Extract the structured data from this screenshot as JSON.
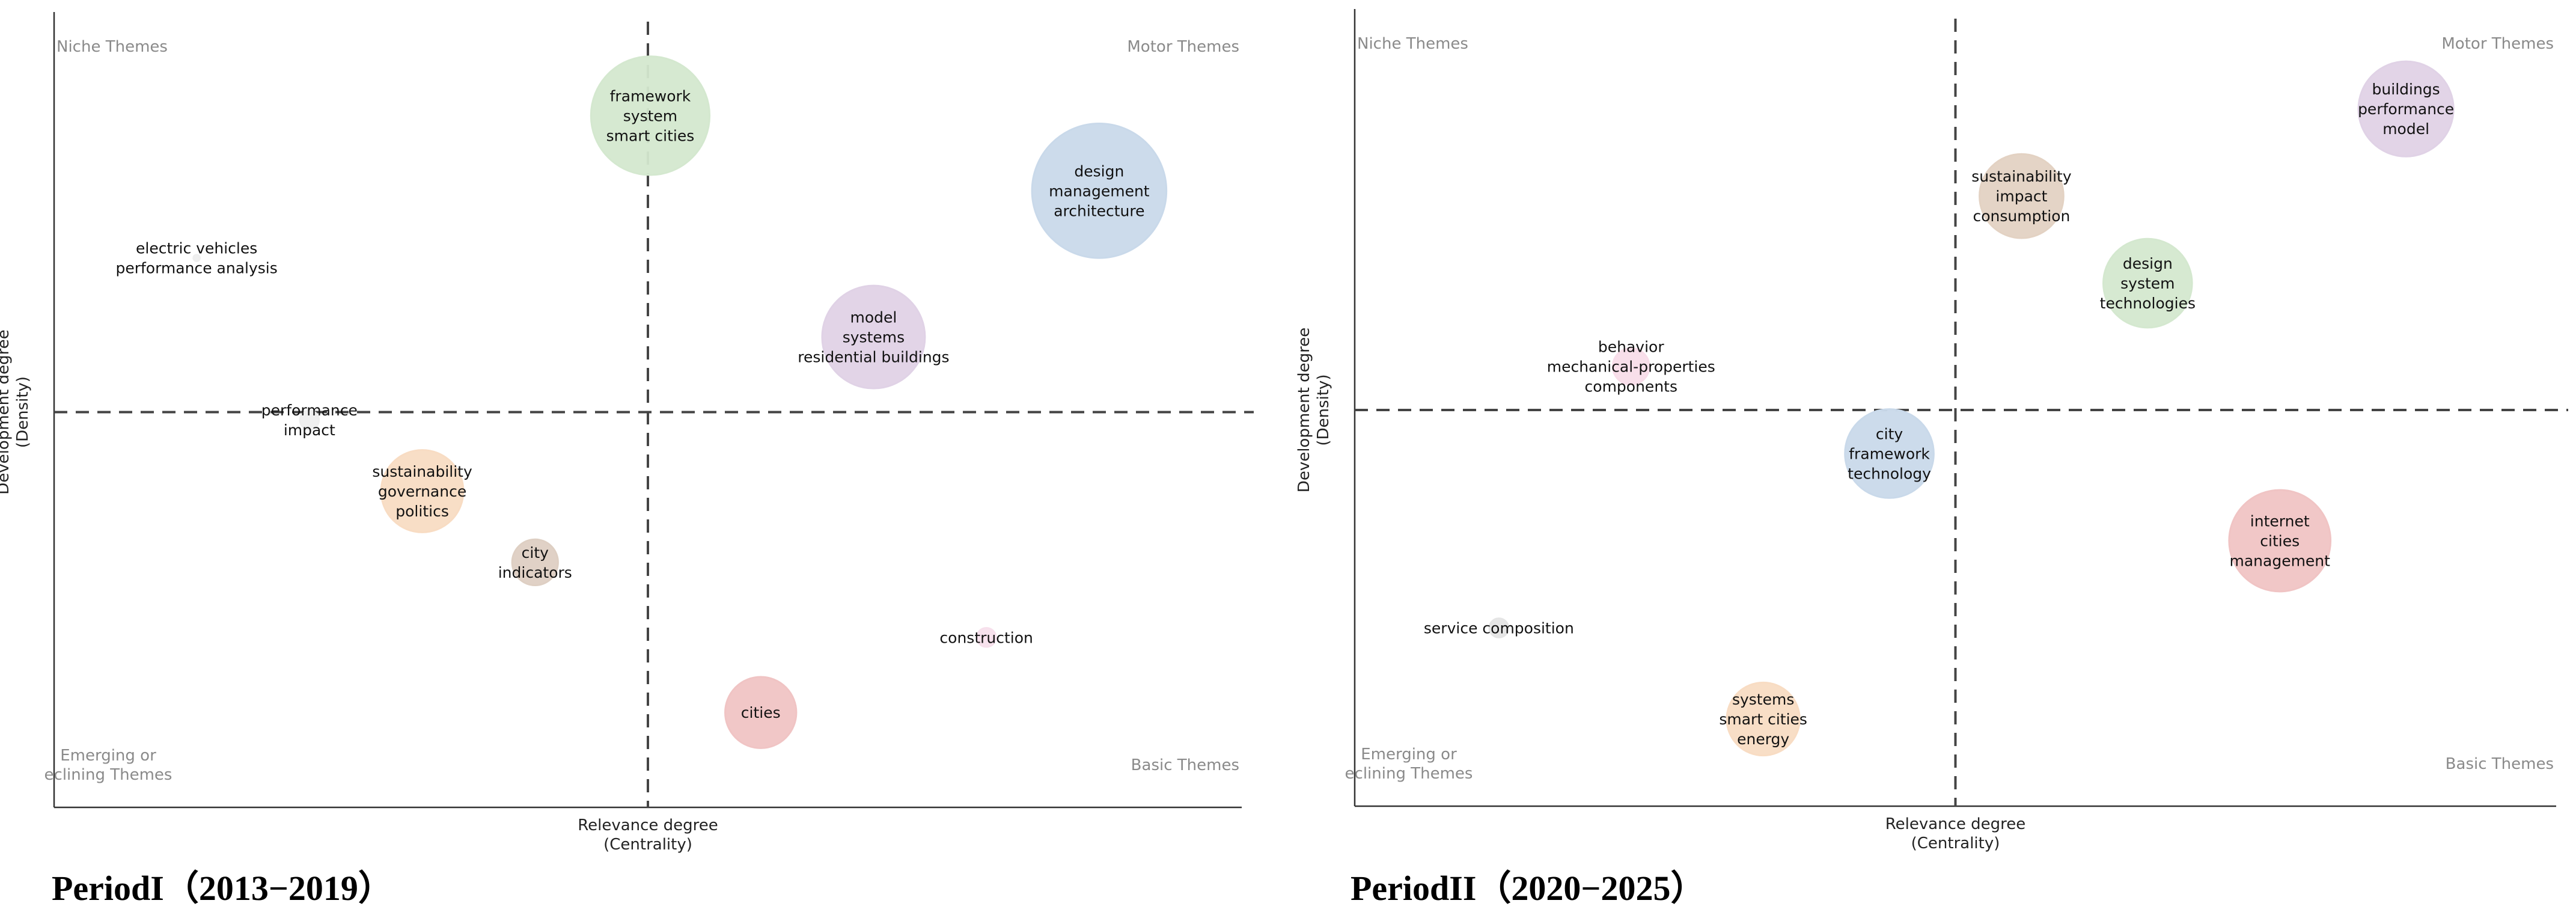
{
  "periods": [
    {
      "title": "PeriodI（2013−2019）"
    },
    {
      "title": "PeriodII（2020−2025）"
    }
  ],
  "chart_data": [
    {
      "type": "scatter",
      "title": "PeriodI（2013−2019）",
      "xlabel": "Relevance degree\n(Centrality)",
      "ylabel": "Development degree\n(Density)",
      "xlim": [
        0,
        100
      ],
      "ylim": [
        0,
        100
      ],
      "x_divider": 50,
      "y_divider": 50,
      "grid": false,
      "quadrant_labels": {
        "top_left": "Niche Themes",
        "top_right": "Motor Themes",
        "bottom_left": "Emerging or\neclining Themes",
        "bottom_right": "Basic Themes"
      },
      "points": [
        {
          "label": "framework\nsystem\nsmart cities",
          "x": 50.2,
          "y": 87.5,
          "size": 7.5,
          "color": "#d4e8cf"
        },
        {
          "label": "design\nmanagement\narchitecture",
          "x": 88.0,
          "y": 78.0,
          "size": 8.5,
          "color": "#c9d9ea"
        },
        {
          "label": "electric vehicles\nperformance analysis",
          "x": 12.0,
          "y": 69.5,
          "size": 0.4,
          "color": "#eeeeee"
        },
        {
          "label": "model\nsystems\nresidential buildings",
          "x": 69.0,
          "y": 59.5,
          "size": 6.5,
          "color": "#e0d2e6"
        },
        {
          "label": "performance\nimpact",
          "x": 21.5,
          "y": 49.0,
          "size": 1.2,
          "color": "#eeeeee"
        },
        {
          "label": "sustainability\ngovernance\npolitics",
          "x": 31.0,
          "y": 40.0,
          "size": 5.2,
          "color": "#f8dcc3"
        },
        {
          "label": "city\nindicators",
          "x": 40.5,
          "y": 31.0,
          "size": 2.9,
          "color": "#decfc3"
        },
        {
          "label": "construction",
          "x": 78.5,
          "y": 21.5,
          "size": 1.2,
          "color": "#f7e0ec"
        },
        {
          "label": "cities",
          "x": 59.5,
          "y": 12.0,
          "size": 4.5,
          "color": "#f0c4c4"
        }
      ]
    },
    {
      "type": "scatter",
      "title": "PeriodII（2020−2025）",
      "xlabel": "Relevance degree\n(Centrality)",
      "ylabel": "Development degree\n(Density)",
      "xlim": [
        0,
        100
      ],
      "ylim": [
        0,
        100
      ],
      "x_divider": 50,
      "y_divider": 50,
      "grid": false,
      "quadrant_labels": {
        "top_left": "Niche Themes",
        "top_right": "Motor Themes",
        "bottom_left": "Emerging or\neclining Themes",
        "bottom_right": "Basic Themes"
      },
      "points": [
        {
          "label": "buildings\nperformance\nmodel",
          "x": 87.5,
          "y": 88.0,
          "size": 6.0,
          "color": "#e0d2e6"
        },
        {
          "label": "sustainability\nimpact\nconsumption",
          "x": 55.5,
          "y": 77.0,
          "size": 5.3,
          "color": "#e3d2c3"
        },
        {
          "label": "design\nsystem\ntechnologies",
          "x": 66.0,
          "y": 66.0,
          "size": 5.6,
          "color": "#d4e8cf"
        },
        {
          "label": "behavior\nmechanical-properties\ncomponents",
          "x": 23.0,
          "y": 55.5,
          "size": 2.3,
          "color": "#f8dde9"
        },
        {
          "label": "city\nframework\ntechnology",
          "x": 44.5,
          "y": 44.5,
          "size": 5.6,
          "color": "#c9d9ea"
        },
        {
          "label": "internet\ncities\nmanagement",
          "x": 77.0,
          "y": 33.5,
          "size": 6.4,
          "color": "#f0c4c4"
        },
        {
          "label": "service composition",
          "x": 12.0,
          "y": 22.5,
          "size": 1.2,
          "color": "#e5e5e5"
        },
        {
          "label": "systems\nsmart cities\nenergy",
          "x": 34.0,
          "y": 11.0,
          "size": 4.6,
          "color": "#f8dcc3"
        }
      ]
    }
  ]
}
